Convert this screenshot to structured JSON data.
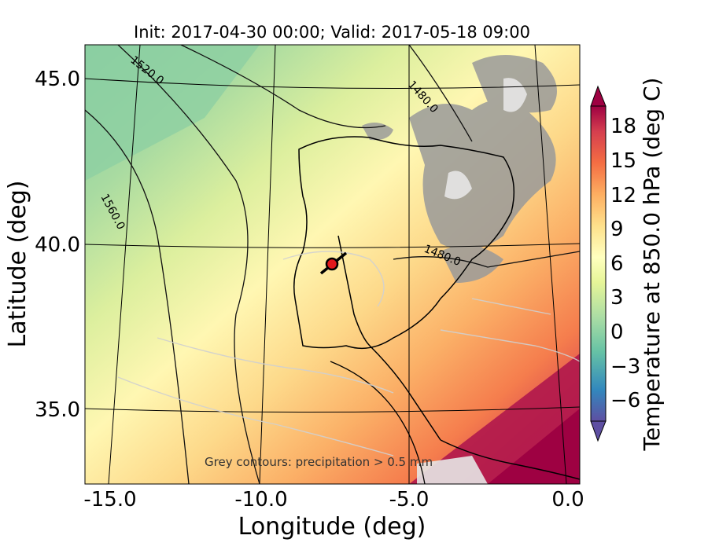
{
  "title": "Init: 2017-04-30 00:00; Valid: 2017-05-18 09:00",
  "xlabel": "Longitude (deg)",
  "ylabel": "Latitude (deg)",
  "x_ticks": [
    "-15.0",
    "-10.0",
    "-5.0",
    "0.0"
  ],
  "y_ticks": [
    "45.0",
    "40.0",
    "35.0"
  ],
  "contour_labels": [
    "1520.0",
    "1480.0",
    "1560.0",
    "1480.0"
  ],
  "annotation": "Grey contours: precipitation  > 0.5 mm",
  "colorbar": {
    "label": "Temperature at 850.0 hPa (deg C)",
    "ticks": [
      "18",
      "15",
      "12",
      "9",
      "6",
      "3",
      "0",
      "−3",
      "−6"
    ],
    "colors": [
      "#5e4fa2",
      "#3288bd",
      "#66c2a5",
      "#abdda4",
      "#e6f598",
      "#ffffbf",
      "#fee08b",
      "#fdae61",
      "#f46d43",
      "#d53e4f",
      "#9e0142"
    ]
  },
  "marker": {
    "label": "",
    "color": "#e31a1c"
  }
}
